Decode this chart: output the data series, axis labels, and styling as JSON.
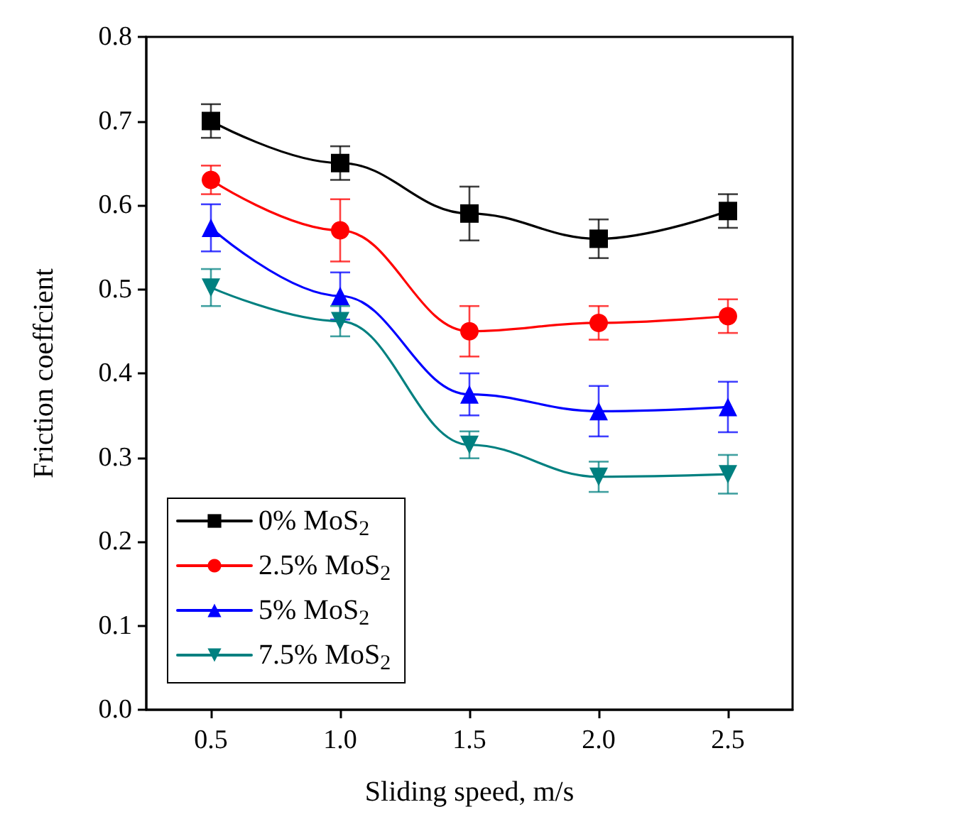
{
  "chart_data": {
    "type": "line",
    "xlabel": "Sliding speed, m/s",
    "ylabel": "Friction coeffcient",
    "x": [
      0.5,
      1.0,
      1.5,
      2.0,
      2.5
    ],
    "xlim": [
      0.25,
      2.75
    ],
    "xticks": [
      0.5,
      {
        "value": 1,
        "label": "1.0"
      },
      1.5,
      {
        "value": 2,
        "label": "2.0"
      },
      2.5
    ],
    "ylim": [
      0,
      0.8
    ],
    "yticks": [
      {
        "value": 0,
        "label": "0.0"
      },
      0.1,
      0.2,
      0.3,
      0.4,
      0.5,
      0.6,
      0.7,
      0.8
    ],
    "legend": "bottom left",
    "grid": false,
    "line_style": "solid",
    "series": [
      {
        "name": "0% MoS$_{2}$",
        "color": "#000000",
        "marker": "square",
        "values": [
          0.7,
          0.65,
          0.59,
          0.56,
          0.593
        ],
        "errors": [
          0.02,
          0.02,
          0.032,
          0.023,
          0.02
        ]
      },
      {
        "name": "2.5% MoS$_{2}$",
        "color": "#ff0000",
        "marker": "circle",
        "values": [
          0.63,
          0.57,
          0.45,
          0.46,
          0.468
        ],
        "errors": [
          0.017,
          0.037,
          0.03,
          0.02,
          0.02
        ]
      },
      {
        "name": "5% MoS$_{2}$",
        "color": "#0000ff",
        "marker": "triangle",
        "values": [
          0.573,
          0.492,
          0.375,
          0.355,
          0.36
        ],
        "errors": [
          0.028,
          0.028,
          0.025,
          0.03,
          0.03
        ]
      },
      {
        "name": "7.5% MoS$_{2}$",
        "color": "#008080",
        "marker": "triangle-down",
        "values": [
          0.502,
          0.462,
          0.315,
          0.277,
          0.28
        ],
        "errors": [
          0.022,
          0.018,
          0.016,
          0.018,
          0.023
        ]
      }
    ]
  }
}
